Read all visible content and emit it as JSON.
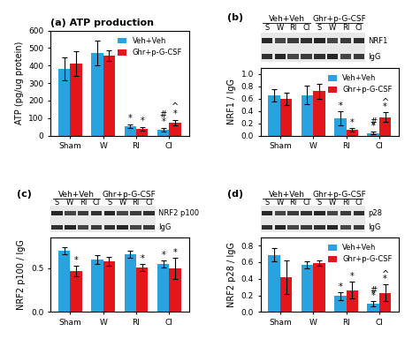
{
  "chart_data": [
    {
      "type": "bar",
      "title": "(a) ATP production",
      "y_label": "ATP (pg/ug protein)",
      "categories": [
        "Sham",
        "W",
        "RI",
        "CI"
      ],
      "series": [
        {
          "name": "Veh+Veh",
          "color": "#29a3e0",
          "values": [
            380,
            470,
            55,
            35
          ],
          "errors": [
            65,
            70,
            10,
            10
          ],
          "annotations": [
            [],
            [],
            [
              "*"
            ],
            [
              "*",
              "#"
            ]
          ]
        },
        {
          "name": "Ghr+p-G-CSF",
          "color": "#e3161b",
          "values": [
            410,
            455,
            40,
            75
          ],
          "errors": [
            70,
            30,
            10,
            15
          ],
          "annotations": [
            [],
            [],
            [
              "*"
            ],
            [
              "*",
              "^"
            ]
          ]
        }
      ],
      "ylim": [
        0,
        600
      ],
      "yticks": [
        0,
        100,
        200,
        300,
        400,
        500,
        600
      ],
      "legend": "upper right"
    },
    {
      "type": "bar",
      "title": "(b)",
      "y_label": "NRF1 / IgG",
      "categories": [
        "Sham",
        "W",
        "RI",
        "CI"
      ],
      "series": [
        {
          "name": "Veh+Veh",
          "color": "#29a3e0",
          "values": [
            0.65,
            0.66,
            0.28,
            0.04
          ],
          "errors": [
            0.1,
            0.15,
            0.12,
            0.02
          ],
          "annotations": [
            [],
            [],
            [
              "*"
            ],
            [
              "*",
              "#"
            ]
          ]
        },
        {
          "name": "Ghr+p-G-CSF",
          "color": "#e3161b",
          "values": [
            0.59,
            0.72,
            0.1,
            0.3
          ],
          "errors": [
            0.1,
            0.12,
            0.03,
            0.08
          ],
          "annotations": [
            [],
            [],
            [
              "*"
            ],
            [
              "*",
              "^"
            ]
          ]
        }
      ],
      "ylim": [
        0,
        1.1
      ],
      "yticks": [
        {
          "value": 0,
          "label": "0.0"
        },
        0.2,
        0.4,
        0.6,
        0.8,
        {
          "value": 1,
          "label": "1.0"
        }
      ],
      "legend": "upper right",
      "blot": {
        "groups": [
          "Veh+Veh",
          "Ghr+p-G-CSF"
        ],
        "lanes": [
          "S",
          "W",
          "RI",
          "CI"
        ],
        "bands": [
          "NRF1",
          "IgG"
        ]
      }
    },
    {
      "type": "bar",
      "title": "(c)",
      "y_label": "NRF2 p100 / IgG",
      "categories": [
        "Sham",
        "W",
        "RI",
        "CI"
      ],
      "series": [
        {
          "name": "Veh+Veh",
          "color": "#29a3e0",
          "values": [
            0.7,
            0.6,
            0.66,
            0.55
          ],
          "errors": [
            0.04,
            0.05,
            0.04,
            0.04
          ],
          "annotations": [
            [],
            [],
            [],
            [
              "*"
            ]
          ]
        },
        {
          "name": "Ghr+p-G-CSF",
          "color": "#e3161b",
          "values": [
            0.47,
            0.58,
            0.51,
            0.5
          ],
          "errors": [
            0.06,
            0.05,
            0.04,
            0.12
          ],
          "annotations": [
            [
              "*"
            ],
            [],
            [
              "*"
            ],
            [
              "*"
            ]
          ]
        }
      ],
      "ylim": [
        0,
        0.85
      ],
      "yticks": [
        {
          "value": 0,
          "label": "0.0"
        },
        0.5
      ],
      "blot": {
        "groups": [
          "Veh+Veh",
          "Ghr+p-G-CSF"
        ],
        "lanes": [
          "S",
          "W",
          "RI",
          "CI"
        ],
        "bands": [
          "NRF2 p100",
          "IgG"
        ]
      }
    },
    {
      "type": "bar",
      "title": "(d)",
      "y_label": "NRF2 p28 / IgG",
      "categories": [
        "Sham",
        "W",
        "RI",
        "CI"
      ],
      "series": [
        {
          "name": "Veh+Veh",
          "color": "#29a3e0",
          "values": [
            0.69,
            0.57,
            0.19,
            0.1
          ],
          "errors": [
            0.08,
            0.04,
            0.05,
            0.03
          ],
          "annotations": [
            [],
            [],
            [
              "*"
            ],
            [
              "*",
              "#"
            ]
          ]
        },
        {
          "name": "Ghr+p-G-CSF",
          "color": "#e3161b",
          "values": [
            0.42,
            0.59,
            0.26,
            0.23
          ],
          "errors": [
            0.2,
            0.03,
            0.1,
            0.1
          ],
          "annotations": [
            [],
            [],
            [
              "*"
            ],
            [
              "*",
              "^"
            ]
          ]
        }
      ],
      "ylim": [
        0,
        0.9
      ],
      "yticks": [
        {
          "value": 0,
          "label": "0.0"
        },
        0.2,
        0.4,
        0.6,
        0.8
      ],
      "legend": "upper right",
      "blot": {
        "groups": [
          "Veh+Veh",
          "Ghr+p-G-CSF"
        ],
        "lanes": [
          "S",
          "W",
          "RI",
          "CI"
        ],
        "bands": [
          "p28",
          "IgG"
        ]
      }
    }
  ]
}
